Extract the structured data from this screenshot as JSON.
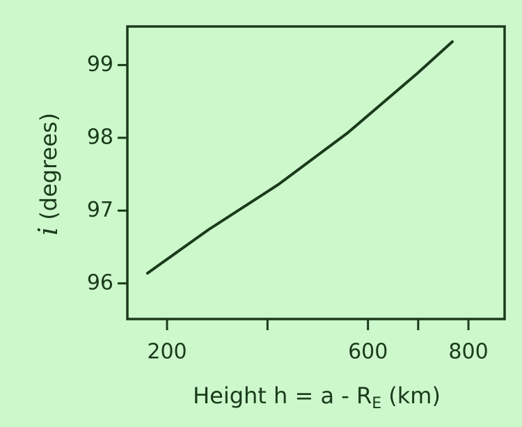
{
  "chart_data": {
    "type": "line",
    "x": [
      161,
      283,
      422,
      560,
      699,
      768
    ],
    "series": [
      {
        "color": "#1b3a1b",
        "values": [
          96.14,
          96.74,
          97.36,
          98.07,
          98.89,
          99.32
        ]
      }
    ],
    "xlim": [
      121,
      872
    ],
    "xticks": [
      200,
      600,
      800
    ],
    "xminor_ticks": [
      400,
      700
    ],
    "ylim": [
      95.51,
      99.53
    ],
    "yticks": [
      96,
      97,
      98,
      99
    ],
    "xlabel": "Height  h = a - R",
    "xlabel_subscript": "E",
    "xlabel_unit": "(km)",
    "ylabel_symbol": "i",
    "ylabel": "(degrees)",
    "grid": false
  }
}
